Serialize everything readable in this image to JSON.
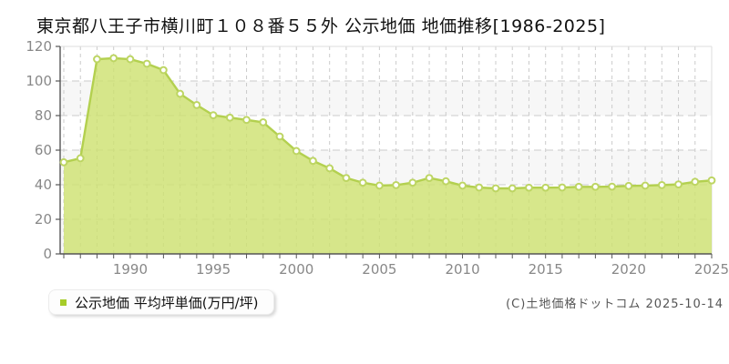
{
  "title": "東京都八王子市横川町１０８番５５外 公示地価 地価推移[1986-2025]",
  "legend": {
    "label": "公示地価 平均坪単価(万円/坪)",
    "swatch_color": "#a6cc29"
  },
  "footer": {
    "copyright": "(C)土地価格ドットコム 2025-10-14"
  },
  "colors": {
    "area_fill": "rgba(205,225,110,0.8)",
    "line": "#b3d04f",
    "point_stroke": "#bdd563",
    "point_fill": "#ffffff",
    "grid": "#cbcbcb",
    "band": "#f7f7f7",
    "border": "#dddddd",
    "axis": "#555555",
    "tick_label": "#888888"
  },
  "chart_data": {
    "type": "area",
    "title": "東京都八王子市横川町１０８番５５外 公示地価 地価推移[1986-2025]",
    "xlabel": "",
    "ylabel": "公示地価 平均坪単価(万円/坪)",
    "ylim": [
      0,
      120
    ],
    "yticks": [
      0,
      20,
      40,
      60,
      80,
      100,
      120
    ],
    "xticks": [
      1990,
      1995,
      2000,
      2005,
      2010,
      2015,
      2020,
      2025
    ],
    "grid": true,
    "legend_position": "bottom-left",
    "x": [
      1986,
      1987,
      1988,
      1989,
      1990,
      1991,
      1992,
      1993,
      1994,
      1995,
      1996,
      1997,
      1998,
      1999,
      2000,
      2001,
      2002,
      2003,
      2004,
      2005,
      2006,
      2007,
      2008,
      2009,
      2010,
      2011,
      2012,
      2013,
      2014,
      2015,
      2016,
      2017,
      2018,
      2019,
      2020,
      2021,
      2022,
      2023,
      2024,
      2025
    ],
    "series": [
      {
        "name": "公示地価 平均坪単価(万円/坪)",
        "values": [
          53.0,
          55.3,
          112.6,
          113.2,
          112.6,
          110.0,
          106.3,
          92.6,
          86.1,
          80.2,
          78.8,
          77.5,
          76.1,
          67.9,
          59.5,
          53.8,
          49.5,
          43.9,
          41.2,
          39.5,
          39.8,
          41.2,
          43.9,
          42.0,
          39.5,
          38.4,
          37.9,
          37.9,
          38.3,
          38.3,
          38.4,
          38.8,
          38.8,
          38.9,
          39.3,
          39.5,
          39.8,
          40.2,
          41.7,
          42.5
        ]
      }
    ]
  }
}
